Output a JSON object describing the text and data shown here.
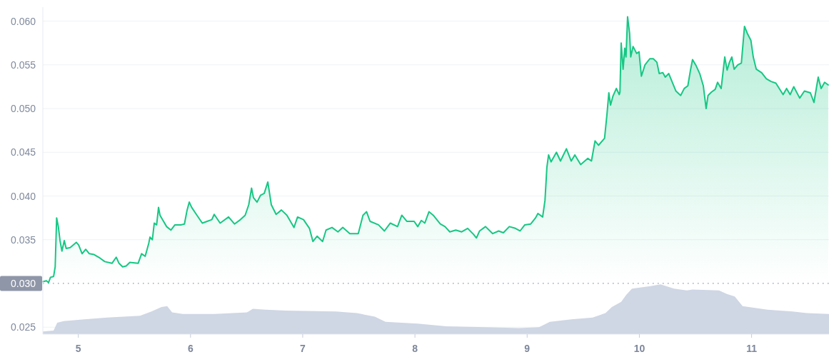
{
  "chart_data": {
    "type": "area",
    "xlim": [
      4.684,
      11.69
    ],
    "ylim": [
      0.0242,
      0.0616
    ],
    "xticks": [
      5,
      6,
      7,
      8,
      9,
      10,
      11
    ],
    "yticks": [
      {
        "value": 0.025,
        "label": "0.025"
      },
      {
        "value": 0.035,
        "label": "0.035"
      },
      {
        "value": 0.04,
        "label": "0.040"
      },
      {
        "value": 0.045,
        "label": "0.045"
      },
      {
        "value": 0.05,
        "label": "0.050"
      },
      {
        "value": 0.055,
        "label": "0.055"
      },
      {
        "value": 0.06,
        "label": "0.060"
      }
    ],
    "grid": "y",
    "ref_lines": [
      {
        "axis": "y",
        "value": 0.03,
        "label": "0.030",
        "color": "#8f96a8",
        "line_style": "dotted"
      }
    ],
    "series": [
      {
        "color": "#16c784",
        "x": [
          4.684,
          4.716,
          4.735,
          4.752,
          4.78,
          4.794,
          4.807,
          4.822,
          4.837,
          4.854,
          4.875,
          4.892,
          4.928,
          4.982,
          5.003,
          5.034,
          5.066,
          5.098,
          5.141,
          5.193,
          5.236,
          5.3,
          5.338,
          5.363,
          5.395,
          5.427,
          5.459,
          5.533,
          5.564,
          5.596,
          5.628,
          5.639,
          5.66,
          5.677,
          5.698,
          5.715,
          5.728,
          5.755,
          5.787,
          5.825,
          5.861,
          5.914,
          5.946,
          5.968,
          5.989,
          6.01,
          6.052,
          6.105,
          6.148,
          6.19,
          6.211,
          6.264,
          6.339,
          6.392,
          6.445,
          6.487,
          6.519,
          6.544,
          6.561,
          6.593,
          6.625,
          6.657,
          6.689,
          6.72,
          6.763,
          6.81,
          6.859,
          6.922,
          6.954,
          7.007,
          7.06,
          7.091,
          7.128,
          7.177,
          7.208,
          7.261,
          7.314,
          7.357,
          7.42,
          7.495,
          7.537,
          7.569,
          7.6,
          7.675,
          7.728,
          7.781,
          7.845,
          7.883,
          7.929,
          7.993,
          8.025,
          8.057,
          8.088,
          8.125,
          8.163,
          8.226,
          8.268,
          8.311,
          8.364,
          8.417,
          8.47,
          8.523,
          8.548,
          8.576,
          8.629,
          8.693,
          8.746,
          8.788,
          8.841,
          8.895,
          8.937,
          8.979,
          9.032,
          9.075,
          9.096,
          9.138,
          9.159,
          9.176,
          9.191,
          9.213,
          9.261,
          9.297,
          9.35,
          9.393,
          9.425,
          9.477,
          9.541,
          9.573,
          9.605,
          9.636,
          9.69,
          9.711,
          9.728,
          9.743,
          9.764,
          9.795,
          9.821,
          9.827,
          9.838,
          9.855,
          9.87,
          9.881,
          9.895,
          9.913,
          9.923,
          9.944,
          9.976,
          9.997,
          10.018,
          10.05,
          10.093,
          10.124,
          10.156,
          10.177,
          10.209,
          10.231,
          10.262,
          10.294,
          10.326,
          10.368,
          10.4,
          10.432,
          10.457,
          10.474,
          10.506,
          10.538,
          10.57,
          10.595,
          10.612,
          10.644,
          10.676,
          10.697,
          10.729,
          10.761,
          10.782,
          10.803,
          10.824,
          10.845,
          10.877,
          10.909,
          10.937,
          10.962,
          10.994,
          11.015,
          11.042,
          11.09,
          11.132,
          11.174,
          11.217,
          11.281,
          11.312,
          11.344,
          11.376,
          11.429,
          11.471,
          11.524,
          11.556,
          11.594,
          11.62,
          11.651,
          11.683
        ],
        "values": [
          0.0302,
          0.0303,
          0.0301,
          0.0307,
          0.0308,
          0.0319,
          0.0375,
          0.0365,
          0.0349,
          0.0337,
          0.0349,
          0.034,
          0.0341,
          0.0347,
          0.0344,
          0.0334,
          0.0339,
          0.0334,
          0.0333,
          0.0329,
          0.0325,
          0.0323,
          0.033,
          0.0323,
          0.0319,
          0.032,
          0.0324,
          0.0323,
          0.0334,
          0.0331,
          0.0346,
          0.0353,
          0.035,
          0.0369,
          0.0367,
          0.0387,
          0.0378,
          0.0372,
          0.0365,
          0.0361,
          0.0367,
          0.0367,
          0.0368,
          0.0383,
          0.0393,
          0.0387,
          0.0379,
          0.0369,
          0.0371,
          0.0373,
          0.0379,
          0.0369,
          0.0376,
          0.0368,
          0.0373,
          0.0378,
          0.039,
          0.0409,
          0.0398,
          0.0393,
          0.0401,
          0.0403,
          0.0416,
          0.039,
          0.0379,
          0.0384,
          0.0378,
          0.0364,
          0.0376,
          0.0373,
          0.0363,
          0.0348,
          0.0354,
          0.0348,
          0.0361,
          0.0364,
          0.0359,
          0.0364,
          0.0357,
          0.0357,
          0.0378,
          0.0382,
          0.0371,
          0.0367,
          0.036,
          0.0369,
          0.0365,
          0.0378,
          0.0371,
          0.0371,
          0.0365,
          0.0372,
          0.0369,
          0.0382,
          0.0378,
          0.0368,
          0.0365,
          0.0359,
          0.0361,
          0.0359,
          0.0363,
          0.0356,
          0.0352,
          0.036,
          0.0365,
          0.0357,
          0.036,
          0.0358,
          0.0365,
          0.0363,
          0.036,
          0.0367,
          0.0368,
          0.0375,
          0.038,
          0.0376,
          0.0395,
          0.0433,
          0.0447,
          0.0439,
          0.045,
          0.044,
          0.0454,
          0.044,
          0.0447,
          0.0436,
          0.0443,
          0.044,
          0.0463,
          0.0458,
          0.0466,
          0.0493,
          0.0518,
          0.0504,
          0.0514,
          0.0523,
          0.0516,
          0.0519,
          0.0575,
          0.0545,
          0.0569,
          0.0559,
          0.0605,
          0.0586,
          0.0559,
          0.0571,
          0.0563,
          0.0565,
          0.0537,
          0.055,
          0.0557,
          0.0557,
          0.0553,
          0.054,
          0.0541,
          0.0536,
          0.054,
          0.053,
          0.052,
          0.0515,
          0.0523,
          0.0526,
          0.0545,
          0.0556,
          0.0549,
          0.054,
          0.0526,
          0.05,
          0.0515,
          0.0519,
          0.0522,
          0.053,
          0.0523,
          0.0559,
          0.0544,
          0.0553,
          0.0559,
          0.0545,
          0.055,
          0.0552,
          0.0594,
          0.0586,
          0.0578,
          0.0559,
          0.0545,
          0.0541,
          0.0534,
          0.0531,
          0.0529,
          0.0516,
          0.0523,
          0.0516,
          0.0525,
          0.0512,
          0.052,
          0.0518,
          0.0507,
          0.0536,
          0.0523,
          0.053,
          0.0527
        ]
      },
      {
        "type": "area",
        "color": "#cfd6e4",
        "x": [
          4.684,
          4.78,
          4.812,
          4.869,
          5.053,
          5.257,
          5.55,
          5.652,
          5.741,
          5.792,
          5.836,
          5.931,
          6.211,
          6.504,
          6.555,
          6.67,
          6.848,
          7.293,
          7.484,
          7.643,
          7.738,
          8.025,
          8.279,
          8.629,
          8.928,
          9.106,
          9.202,
          9.393,
          9.584,
          9.698,
          9.755,
          9.838,
          9.883,
          9.934,
          10.099,
          10.188,
          10.309,
          10.423,
          10.474,
          10.71,
          10.78,
          10.85,
          10.92,
          11.142,
          11.365,
          11.492,
          11.69
        ],
        "values": [
          0.0245,
          0.0246,
          0.0255,
          0.0257,
          0.0259,
          0.0261,
          0.0263,
          0.0268,
          0.0273,
          0.0274,
          0.0267,
          0.0265,
          0.0265,
          0.0267,
          0.0271,
          0.027,
          0.0269,
          0.0268,
          0.0266,
          0.0262,
          0.0256,
          0.0254,
          0.0251,
          0.025,
          0.0249,
          0.025,
          0.0256,
          0.0259,
          0.0261,
          0.0266,
          0.0273,
          0.0279,
          0.0287,
          0.0294,
          0.0297,
          0.0299,
          0.0294,
          0.0292,
          0.0293,
          0.0292,
          0.0288,
          0.0285,
          0.0274,
          0.027,
          0.0268,
          0.0266,
          0.0265
        ]
      }
    ]
  }
}
